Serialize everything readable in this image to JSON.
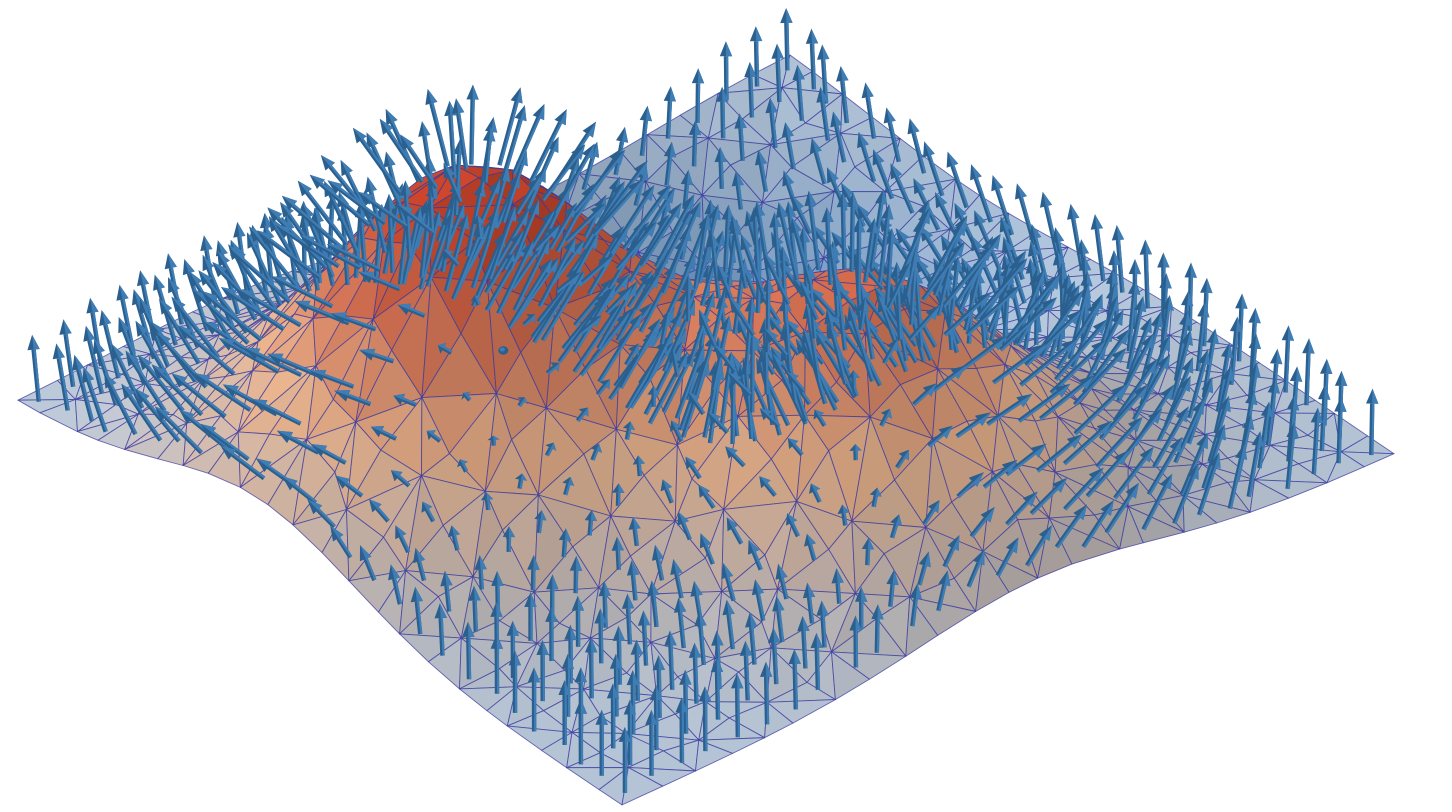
{
  "figure": {
    "kind": "3d-surface-with-normal-vectors",
    "mesh": "triangulated",
    "surface": {
      "features": [
        {
          "type": "bump",
          "u": 0.28,
          "v": 0.4,
          "height": 1.0,
          "sigma": 0.16
        },
        {
          "type": "bump",
          "u": 0.54,
          "v": 0.72,
          "height": 0.72,
          "sigma": 0.15
        },
        {
          "type": "dip",
          "u": 0.66,
          "v": 0.3,
          "height": -0.55,
          "sigma": 0.16
        }
      ]
    },
    "colors": {
      "flat": "#b4c4d6",
      "high": "#c8442a",
      "mid": "#efb891",
      "low": "#5d93cf",
      "mesh_line": "#3a3aa0",
      "arrow_body": "#3f7db5",
      "arrow_shade": "#2b5f8d"
    },
    "arrow_icon": "normal-vector-arrow"
  }
}
